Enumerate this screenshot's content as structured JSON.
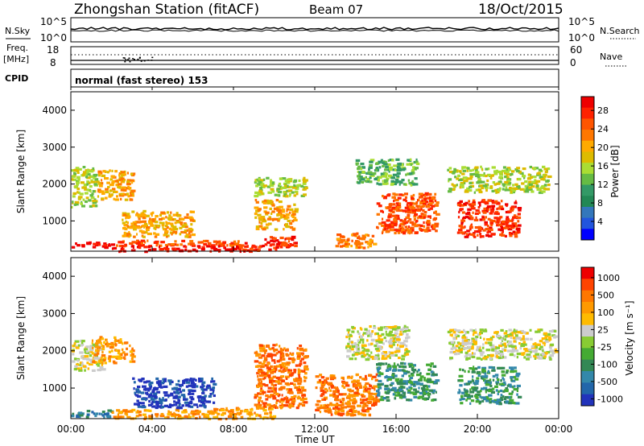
{
  "header": {
    "station": "Zhongshan Station (fitACF)",
    "beam": "Beam 07",
    "date": "18/Oct/2015"
  },
  "summary": {
    "nsky_label": "N.Sky",
    "nsky_tick_top": "10^5",
    "nsky_tick_bottom": "10^0",
    "nsearch_label": "N.Search",
    "nsearch_tick_top": "10^5",
    "nsearch_tick_bottom": "10^0",
    "freq_label": "Freq.",
    "freq_unit": "[MHz]",
    "freq_tick_top": "18",
    "freq_tick_bottom": "8",
    "nave_label": "Nave",
    "nave_tick_top": "60",
    "nave_tick_bottom": "0",
    "cpid_label": "CPID",
    "cpid_text": "normal (fast stereo) 153"
  },
  "chart_data": [
    {
      "type": "heatmap",
      "name": "power",
      "ylabel": "Slant Range [km]",
      "ylim": [
        180,
        4500
      ],
      "yticks": [
        "1000",
        "2000",
        "3000",
        "4000"
      ],
      "xlim": [
        "00:00",
        "24:00"
      ],
      "colorbar": {
        "label": "Power [dB]",
        "ticks": [
          "4",
          "8",
          "12",
          "16",
          "20",
          "24",
          "28"
        ],
        "colors": [
          "#0000ff",
          "#2255dd",
          "#3377bb",
          "#228855",
          "#339966",
          "#66bb44",
          "#aadd33",
          "#ddbb00",
          "#ffaa00",
          "#ff7700",
          "#ff5500",
          "#ff2200",
          "#ee0000"
        ]
      },
      "regions": [
        {
          "t0": 0.0,
          "t1": 1.2,
          "r0": 1400,
          "r1": 2500,
          "level": 6
        },
        {
          "t0": 1.3,
          "t1": 3.0,
          "r0": 1600,
          "r1": 2400,
          "level": 8
        },
        {
          "t0": 0.0,
          "t1": 2.0,
          "r0": 300,
          "r1": 450,
          "level": 12
        },
        {
          "t0": 2.0,
          "t1": 8.5,
          "r0": 350,
          "r1": 500,
          "level": 10
        },
        {
          "t0": 2.0,
          "t1": 8.5,
          "r0": 200,
          "r1": 350,
          "level": 12
        },
        {
          "t0": 8.0,
          "t1": 9.5,
          "r0": 200,
          "r1": 450,
          "level": 11
        },
        {
          "t0": 2.5,
          "t1": 6.0,
          "r0": 600,
          "r1": 1300,
          "level": 8
        },
        {
          "t0": 9.5,
          "t1": 11.0,
          "r0": 250,
          "r1": 600,
          "level": 11
        },
        {
          "t0": 9.0,
          "t1": 11.0,
          "r0": 800,
          "r1": 1600,
          "level": 8
        },
        {
          "t0": 9.0,
          "t1": 11.5,
          "r0": 1700,
          "r1": 2200,
          "level": 6
        },
        {
          "t0": 13.0,
          "t1": 15.0,
          "r0": 300,
          "r1": 700,
          "level": 9
        },
        {
          "t0": 15.0,
          "t1": 18.0,
          "r0": 700,
          "r1": 1800,
          "level": 10
        },
        {
          "t0": 14.0,
          "t1": 17.0,
          "r0": 2000,
          "r1": 2700,
          "level": 5
        },
        {
          "t0": 19.0,
          "t1": 22.0,
          "r0": 600,
          "r1": 1600,
          "level": 11
        },
        {
          "t0": 18.5,
          "t1": 23.5,
          "r0": 1800,
          "r1": 2500,
          "level": 6
        }
      ]
    },
    {
      "type": "heatmap",
      "name": "velocity",
      "ylabel": "Slant Range [km]",
      "ylim": [
        180,
        4500
      ],
      "yticks": [
        "1000",
        "2000",
        "3000",
        "4000"
      ],
      "xticks": [
        "00:00",
        "04:00",
        "08:00",
        "12:00",
        "16:00",
        "20:00",
        "00:00"
      ],
      "xlabel": "Time UT",
      "colorbar": {
        "label": "Velocity [m s⁻¹]",
        "ticks": [
          "1000",
          "500",
          "100",
          "25",
          "-25",
          "-100",
          "-500",
          "-1000"
        ],
        "colors": [
          "#2233bb",
          "#2266aa",
          "#3388aa",
          "#338855",
          "#44aa33",
          "#88cc33",
          "#cccccc",
          "#ffbb00",
          "#ff9900",
          "#ff7700",
          "#ff4400",
          "#ee0000"
        ]
      },
      "regions": [
        {
          "t0": 0.0,
          "t1": 1.5,
          "r0": 1500,
          "r1": 2300,
          "level": 6
        },
        {
          "t0": 1.0,
          "t1": 3.0,
          "r0": 1700,
          "r1": 2400,
          "level": 8
        },
        {
          "t0": 0.0,
          "t1": 2.0,
          "r0": 250,
          "r1": 450,
          "level": 2
        },
        {
          "t0": 2.0,
          "t1": 7.0,
          "r0": 200,
          "r1": 450,
          "level": 8
        },
        {
          "t0": 3.0,
          "t1": 7.0,
          "r0": 500,
          "r1": 1300,
          "level": 0
        },
        {
          "t0": 7.0,
          "t1": 10.0,
          "r0": 200,
          "r1": 500,
          "level": 8
        },
        {
          "t0": 9.0,
          "t1": 11.5,
          "r0": 500,
          "r1": 2200,
          "level": 9
        },
        {
          "t0": 12.0,
          "t1": 15.0,
          "r0": 300,
          "r1": 1400,
          "level": 9
        },
        {
          "t0": 15.0,
          "t1": 18.0,
          "r0": 700,
          "r1": 1700,
          "level": 3
        },
        {
          "t0": 13.5,
          "t1": 16.5,
          "r0": 1800,
          "r1": 2700,
          "level": 6
        },
        {
          "t0": 19.0,
          "t1": 22.0,
          "r0": 600,
          "r1": 1600,
          "level": 3
        },
        {
          "t0": 18.5,
          "t1": 23.8,
          "r0": 1800,
          "r1": 2600,
          "level": 6
        }
      ]
    }
  ]
}
